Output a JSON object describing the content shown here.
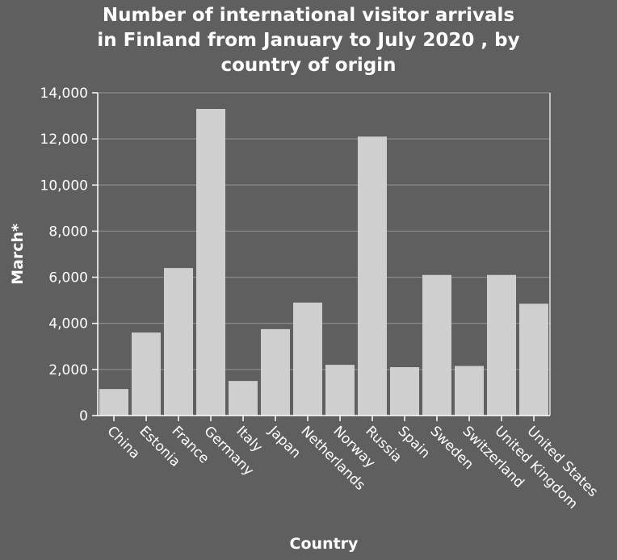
{
  "chart_data": {
    "type": "bar",
    "title": [
      "Number of international visitor arrivals",
      "in Finland from January to July 2020 , by",
      "country of origin"
    ],
    "xlabel": "Country",
    "ylabel": "March*",
    "ylim": [
      0,
      14000
    ],
    "yticks": [
      0,
      2000,
      4000,
      6000,
      8000,
      10000,
      12000,
      14000
    ],
    "ytick_labels": [
      "0",
      "2,000",
      "4,000",
      "6,000",
      "8,000",
      "10,000",
      "12,000",
      "14,000"
    ],
    "categories": [
      "China",
      "Estonia",
      "France",
      "Germany",
      "Italy",
      "Japan",
      "Netherlands",
      "Norway",
      "Russia",
      "Spain",
      "Sweden",
      "Switzerland",
      "United Kingdom",
      "United States"
    ],
    "values": [
      1150,
      3600,
      6400,
      13300,
      1500,
      3750,
      4900,
      2200,
      12100,
      2100,
      6100,
      2150,
      6100,
      4850
    ],
    "grid": true,
    "legend": "none",
    "colors": {
      "background": "#5f5f5f",
      "bar": "#cfcfcf",
      "grid": "#8c8c8c",
      "text": "#ffffff"
    }
  }
}
